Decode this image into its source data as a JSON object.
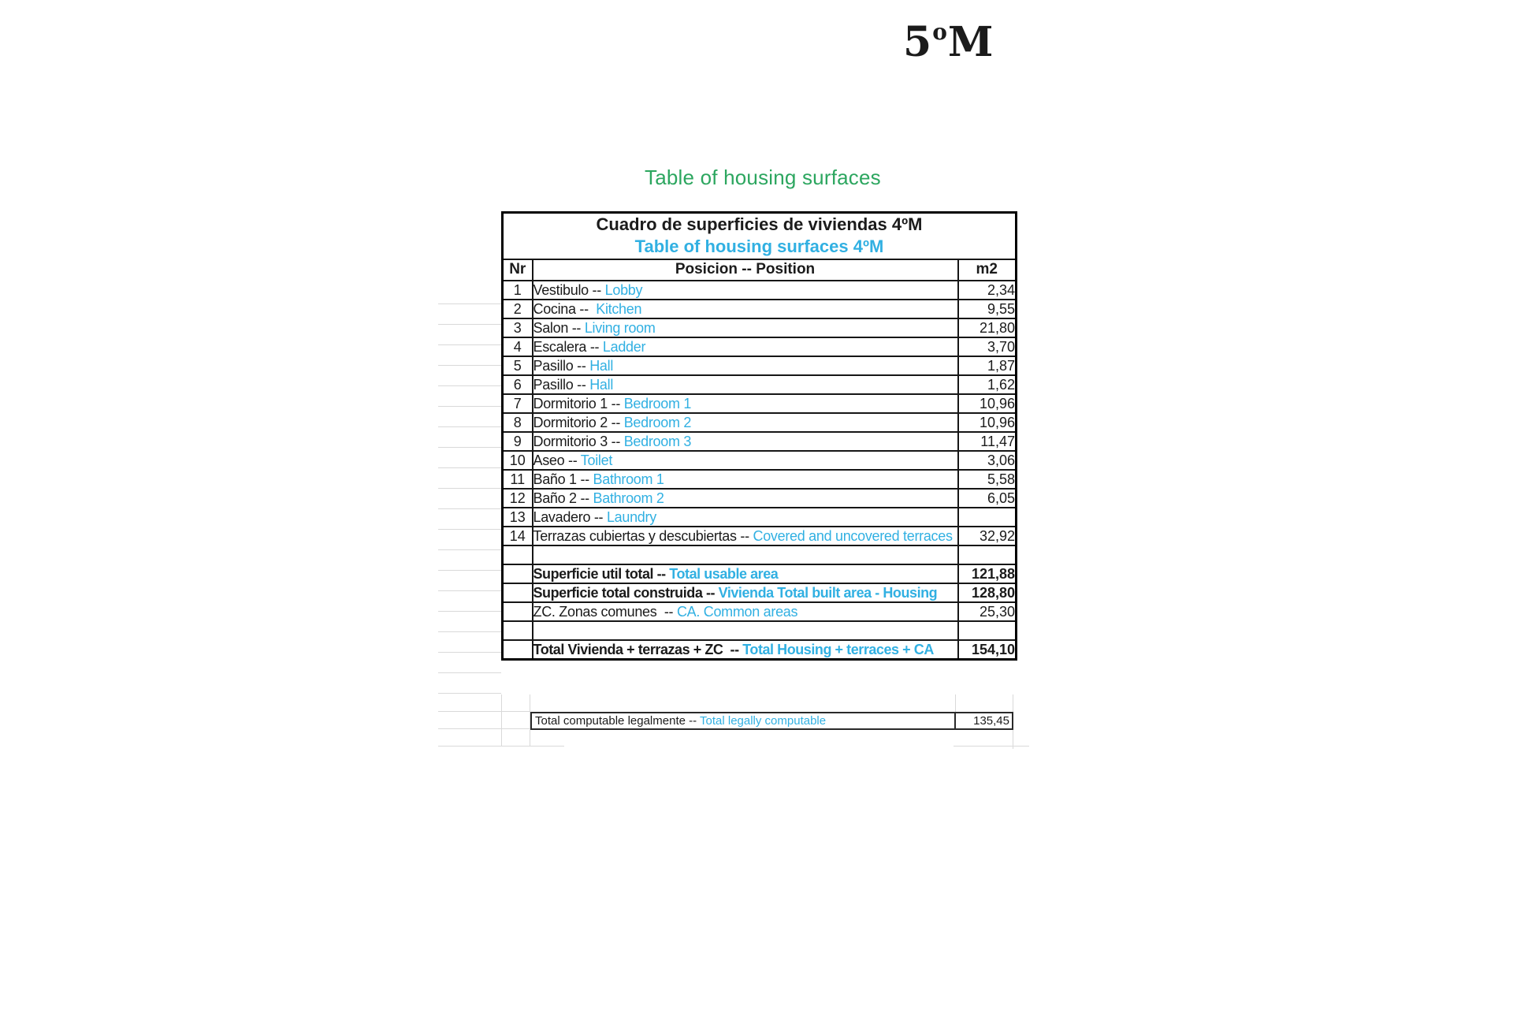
{
  "page": {
    "unit_title": {
      "number": "5",
      "ordinal": "o",
      "suffix": "M"
    },
    "subtitle": "Table of housing surfaces"
  },
  "table": {
    "title_es": "Cuadro de superficies de viviendas 4ºM",
    "title_en": "Table of housing surfaces 4ºM",
    "headers": {
      "nr": "Nr",
      "position": "Posicion -- Position",
      "m2": "m2"
    },
    "rows": [
      {
        "nr": "1",
        "es": "Vestibulo -- ",
        "en": "Lobby",
        "m2": "2,34"
      },
      {
        "nr": "2",
        "es": "Cocina --  ",
        "en": "Kitchen",
        "m2": "9,55"
      },
      {
        "nr": "3",
        "es": "Salon -- ",
        "en": "Living room",
        "m2": "21,80"
      },
      {
        "nr": "4",
        "es": "Escalera -- ",
        "en": "Ladder",
        "m2": "3,70"
      },
      {
        "nr": "5",
        "es": "Pasillo -- ",
        "en": "Hall",
        "m2": "1,87"
      },
      {
        "nr": "6",
        "es": "Pasillo -- ",
        "en": "Hall",
        "m2": "1,62"
      },
      {
        "nr": "7",
        "es": "Dormitorio 1 -- ",
        "en": "Bedroom 1",
        "m2": "10,96"
      },
      {
        "nr": "8",
        "es": "Dormitorio 2 -- ",
        "en": "Bedroom 2",
        "m2": "10,96"
      },
      {
        "nr": "9",
        "es": "Dormitorio 3 -- ",
        "en": "Bedroom 3",
        "m2": "11,47"
      },
      {
        "nr": "10",
        "es": "Aseo -- ",
        "en": "Toilet",
        "m2": "3,06"
      },
      {
        "nr": "11",
        "es": "Baño 1 -- ",
        "en": "Bathroom 1",
        "m2": "5,58"
      },
      {
        "nr": "12",
        "es": "Baño 2 -- ",
        "en": "Bathroom 2",
        "m2": "6,05"
      },
      {
        "nr": "13",
        "es": "Lavadero -- ",
        "en": "Laundry",
        "m2": ""
      },
      {
        "nr": "14",
        "es": "Terrazas cubiertas y descubiertas -- ",
        "en": "Covered and uncovered terraces",
        "m2": "32,92"
      }
    ],
    "summary": [
      {
        "es": "Superficie util total -- ",
        "en": "Total usable area",
        "m2": "121,88",
        "bold": true
      },
      {
        "es": "Superficie total construida -- ",
        "en": "Vivienda Total built area - Housing",
        "m2": "128,80",
        "bold": true
      },
      {
        "es": "ZC. Zonas comunes  -- ",
        "en": "CA. Common areas",
        "m2": "25,30",
        "bold": false
      },
      {
        "empty": true
      },
      {
        "es": "Total Vivienda + terrazas + ZC  -- ",
        "en": "Total Housing + terraces + CA",
        "m2": "154,10",
        "bold": true
      }
    ],
    "footer": {
      "es": "Total computable legalmente -- ",
      "en": "Total legally computable",
      "m2": "135,45"
    }
  },
  "colors": {
    "accent_cyan": "#31B0E2",
    "accent_green": "#2CA65F"
  }
}
